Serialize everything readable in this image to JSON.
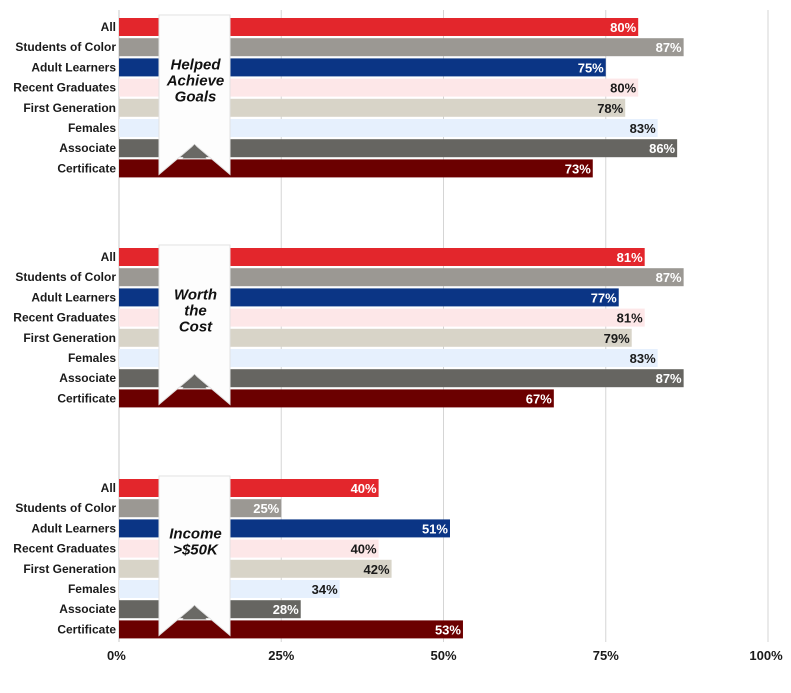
{
  "chart_data": {
    "type": "bar",
    "orientation": "horizontal",
    "categories": [
      "All",
      "Students of Color",
      "Adult Learners",
      "Recent Graduates",
      "First Generation",
      "Females",
      "Associate",
      "Certificate"
    ],
    "category_colors": [
      "#e3262c",
      "#9b9893",
      "#0b3585",
      "#fde7e8",
      "#d8d4c8",
      "#e6f0fd",
      "#666561",
      "#6b0000"
    ],
    "value_label_colors": [
      "#ffffff",
      "#ffffff",
      "#ffffff",
      "#1a1a1a",
      "#1a1a1a",
      "#1a1a1a",
      "#ffffff",
      "#ffffff"
    ],
    "xlim": [
      0,
      100
    ],
    "x_ticks": [
      0,
      25,
      50,
      75,
      100
    ],
    "x_tick_labels": [
      "0%",
      "25%",
      "50%",
      "75%",
      "100%"
    ],
    "grid": true,
    "panels": [
      {
        "title_lines": [
          "Helped",
          "Achieve",
          "Goals"
        ],
        "values": [
          80,
          87,
          75,
          80,
          78,
          83,
          86,
          73
        ],
        "labels": [
          "80%",
          "87%",
          "75%",
          "80%",
          "78%",
          "83%",
          "86%",
          "73%"
        ]
      },
      {
        "title_lines": [
          "Worth",
          "the",
          "Cost"
        ],
        "values": [
          81,
          87,
          77,
          81,
          79,
          83,
          87,
          67
        ],
        "labels": [
          "81%",
          "87%",
          "77%",
          "81%",
          "79%",
          "83%",
          "87%",
          "67%"
        ]
      },
      {
        "title_lines": [
          "Income",
          ">$50K"
        ],
        "values": [
          40,
          25,
          51,
          40,
          42,
          34,
          28,
          53
        ],
        "labels": [
          "40%",
          "25%",
          "51%",
          "40%",
          "42%",
          "34%",
          "28%",
          "53%"
        ]
      }
    ]
  }
}
